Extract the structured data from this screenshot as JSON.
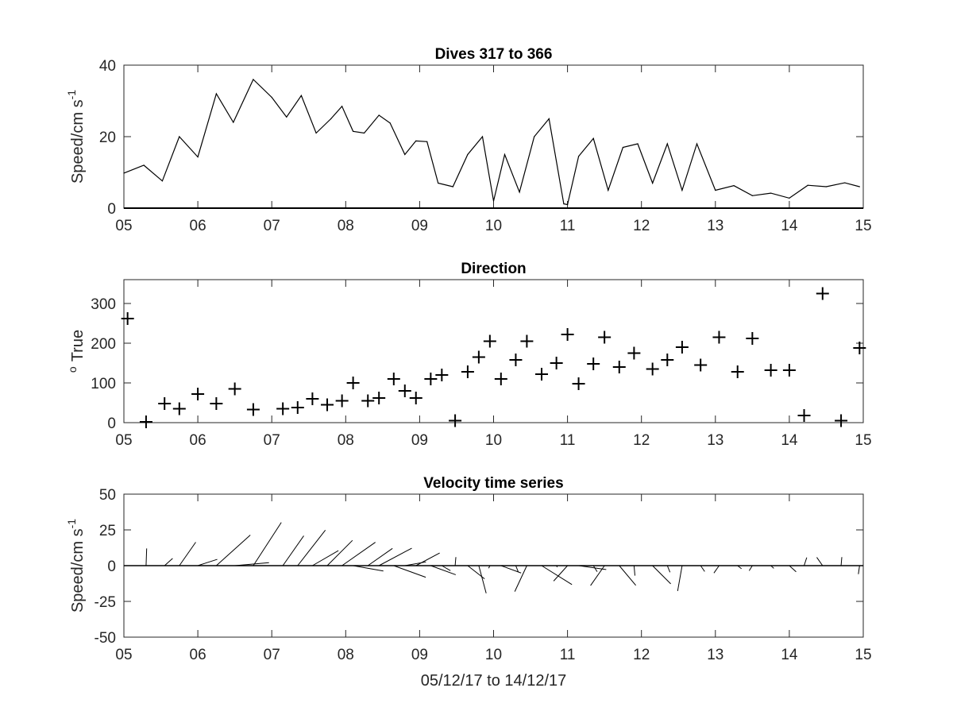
{
  "chart_data": [
    {
      "type": "line",
      "title": "Dives 317 to 366",
      "ylabel": "Speed/cm s",
      "ylabel_superscript": "-1",
      "xlim": [
        5,
        15
      ],
      "ylim": [
        0,
        40
      ],
      "x_ticks": [
        "05",
        "06",
        "07",
        "08",
        "09",
        "10",
        "11",
        "12",
        "13",
        "14",
        "15"
      ],
      "y_ticks": [
        "0",
        "20",
        "40"
      ],
      "x": [
        5.0,
        5.27,
        5.52,
        5.75,
        6.0,
        6.25,
        6.48,
        6.75,
        7.0,
        7.2,
        7.4,
        7.6,
        7.8,
        7.95,
        8.1,
        8.25,
        8.45,
        8.6,
        8.8,
        8.95,
        9.1,
        9.25,
        9.45,
        9.65,
        9.85,
        10.0,
        10.15,
        10.35,
        10.55,
        10.75,
        10.95,
        11.0,
        11.15,
        11.35,
        11.55,
        11.75,
        11.95,
        12.15,
        12.35,
        12.55,
        12.75,
        13.0,
        13.25,
        13.5,
        13.75,
        14.0,
        14.25,
        14.5,
        14.75,
        14.95
      ],
      "y": [
        9.8,
        12,
        7.6,
        20,
        14.3,
        32,
        24,
        36,
        31,
        25.5,
        31.5,
        21,
        25,
        28.5,
        21.5,
        21,
        26,
        23.8,
        15,
        18.8,
        18.6,
        7,
        6,
        15,
        20,
        2,
        15,
        4.5,
        20,
        25,
        1.2,
        1,
        14.5,
        19.5,
        5,
        17,
        18,
        7,
        18,
        5,
        18,
        5,
        6.3,
        3.5,
        4.2,
        2.8,
        6.4,
        6,
        7.1,
        6
      ]
    },
    {
      "type": "scatter",
      "title": "Direction",
      "ylabel": "True",
      "ylabel_superscript": "o",
      "marker": "+",
      "xlim": [
        5,
        15
      ],
      "ylim": [
        0,
        360
      ],
      "x_ticks": [
        "05",
        "06",
        "07",
        "08",
        "09",
        "10",
        "11",
        "12",
        "13",
        "14",
        "15"
      ],
      "y_ticks": [
        "0",
        "100",
        "200",
        "300"
      ],
      "x": [
        5.05,
        5.3,
        5.55,
        5.75,
        6.0,
        6.25,
        6.5,
        6.75,
        7.15,
        7.35,
        7.55,
        7.75,
        7.95,
        8.1,
        8.3,
        8.45,
        8.65,
        8.8,
        8.95,
        9.15,
        9.3,
        9.48,
        9.65,
        9.8,
        9.95,
        10.1,
        10.3,
        10.45,
        10.65,
        10.85,
        11.0,
        11.15,
        11.35,
        11.5,
        11.7,
        11.9,
        12.15,
        12.35,
        12.55,
        12.8,
        13.05,
        13.3,
        13.5,
        13.75,
        14.0,
        14.2,
        14.45,
        14.7,
        14.95
      ],
      "y": [
        262,
        2,
        48,
        35,
        72,
        48,
        85,
        33,
        35,
        38,
        60,
        45,
        55,
        100,
        55,
        62,
        110,
        80,
        62,
        110,
        120,
        5,
        128,
        165,
        205,
        110,
        158,
        205,
        122,
        150,
        222,
        98,
        148,
        215,
        140,
        175,
        135,
        158,
        190,
        145,
        215,
        128,
        212,
        132,
        132,
        18,
        325,
        5,
        188
      ]
    },
    {
      "type": "quiver",
      "title": "Velocity time series",
      "ylabel": "Speed/cm s",
      "ylabel_superscript": "-1",
      "xlabel": "05/12/17 to 14/12/17",
      "xlim": [
        5,
        15
      ],
      "ylim": [
        -50,
        50
      ],
      "x_ticks": [
        "05",
        "06",
        "07",
        "08",
        "09",
        "10",
        "11",
        "12",
        "13",
        "14",
        "15"
      ],
      "y_ticks": [
        "50",
        "25",
        "0",
        "-25",
        "-50"
      ],
      "x": [
        5.3,
        5.55,
        5.75,
        6.0,
        6.25,
        6.5,
        6.75,
        7.15,
        7.35,
        7.55,
        7.75,
        7.95,
        8.1,
        8.3,
        8.45,
        8.65,
        8.8,
        8.95,
        9.15,
        9.3,
        9.48,
        9.65,
        9.8,
        9.95,
        10.1,
        10.3,
        10.45,
        10.65,
        10.85,
        11.0,
        11.15,
        11.35,
        11.5,
        11.7,
        11.9,
        12.15,
        12.35,
        12.55,
        12.8,
        13.05,
        13.3,
        13.5,
        13.75,
        14.0,
        14.2,
        14.45,
        14.7,
        14.95
      ],
      "speed": [
        12,
        7.6,
        20,
        14.3,
        32,
        24,
        36,
        25.5,
        31.5,
        21,
        25,
        28.5,
        21.5,
        21,
        26,
        23.8,
        15,
        18.8,
        18.6,
        7,
        6,
        15,
        20,
        2,
        15,
        4.5,
        20,
        25,
        1.2,
        14.5,
        19.5,
        5,
        17,
        18,
        7,
        18,
        5,
        18,
        5,
        6.3,
        3.5,
        4.2,
        2.8,
        6.4,
        6,
        7.1,
        6,
        6
      ],
      "direction": [
        2,
        48,
        35,
        72,
        48,
        85,
        33,
        35,
        38,
        60,
        45,
        55,
        100,
        55,
        62,
        110,
        80,
        62,
        110,
        120,
        5,
        128,
        165,
        205,
        110,
        158,
        205,
        122,
        150,
        222,
        98,
        148,
        215,
        140,
        175,
        135,
        158,
        190,
        145,
        215,
        128,
        212,
        132,
        132,
        18,
        325,
        5,
        188
      ]
    }
  ]
}
